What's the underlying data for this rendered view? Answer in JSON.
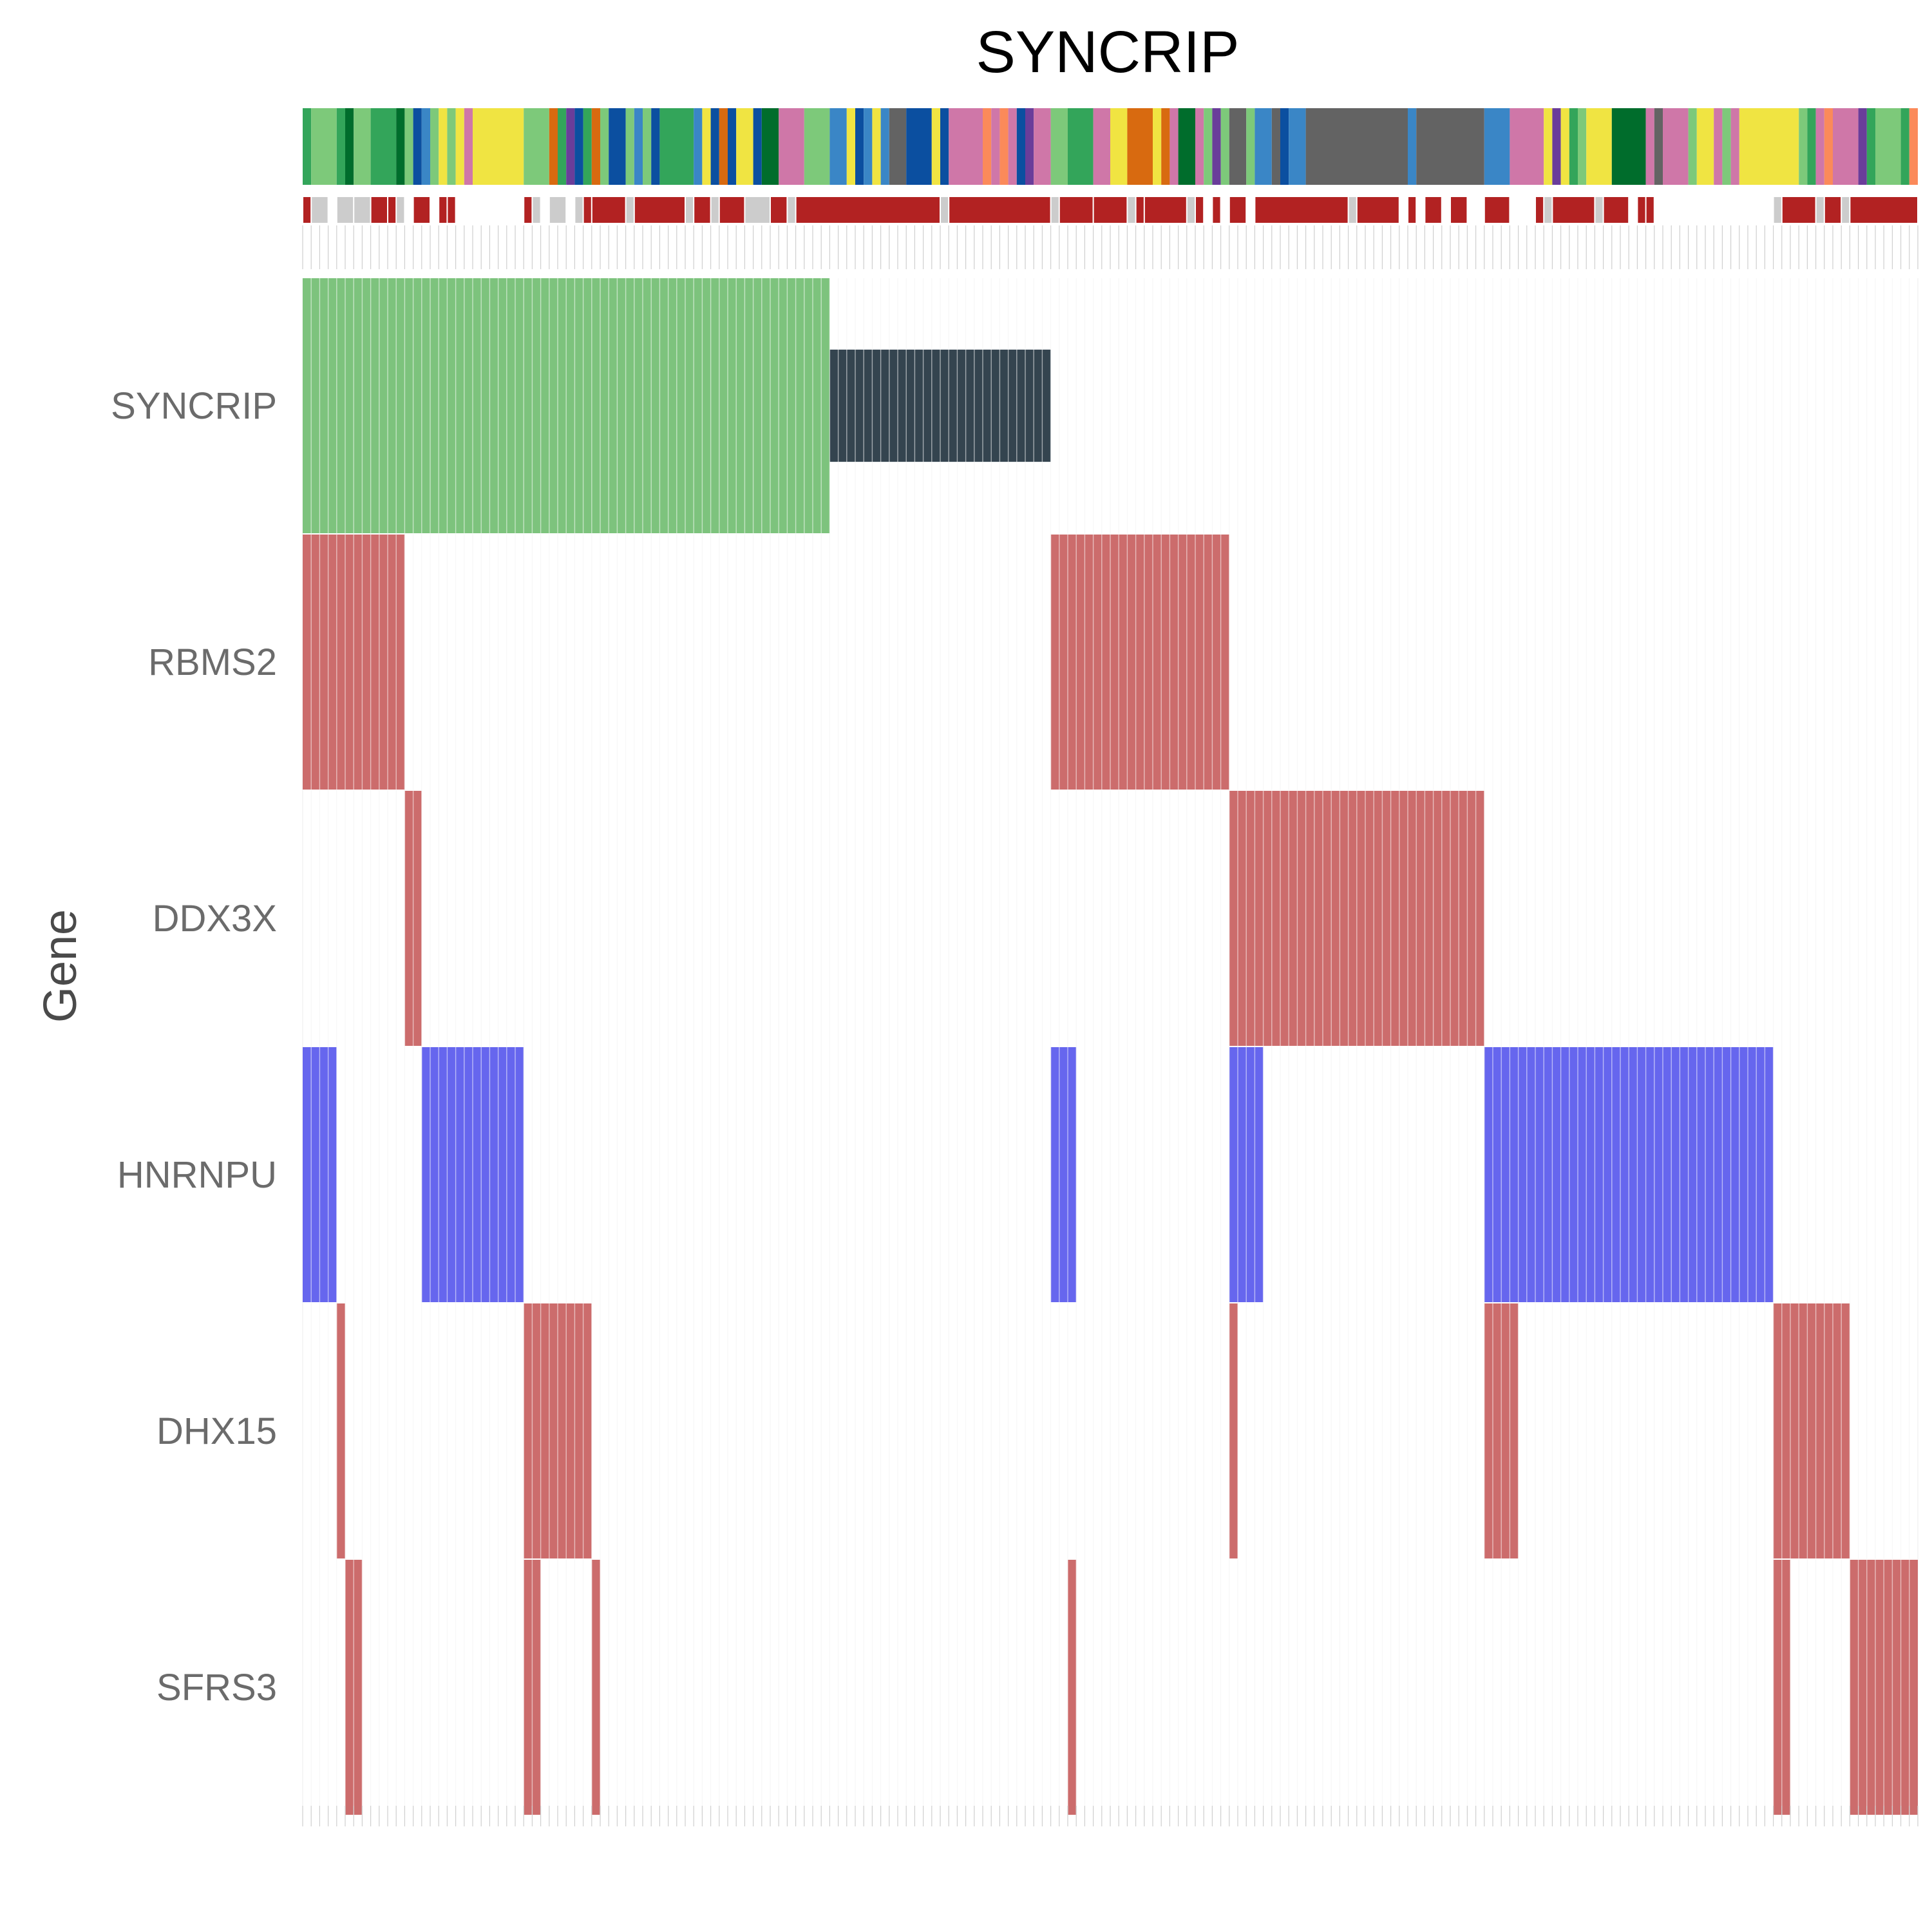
{
  "chart_data": {
    "type": "heatmap",
    "title": "SYNCRIP",
    "xlabel": "",
    "ylabel": "Gene",
    "n_samples": 190,
    "grid": true,
    "genes": [
      "SYNCRIP",
      "RBMS2",
      "DDX3X",
      "HNRNPU",
      "DHX15",
      "SFRS3"
    ],
    "colors": {
      "syncrip_high": "#7dc37d",
      "syncrip_low": "#34444f",
      "alteration_red": "#cc6c6c",
      "alteration_blue": "#6666ee",
      "mutation_track": "#b22222",
      "missing": "#cccccc",
      "grid_line": "#ececec"
    },
    "syncrip_track": {
      "high_samples": [
        0,
        61
      ],
      "low_samples": [
        62,
        87
      ],
      "high_color": "#7dc37d",
      "low_color": "#34444f"
    },
    "alterations": [
      {
        "gene": "RBMS2",
        "color": "#cc6c6c",
        "ranges": [
          [
            0,
            11
          ],
          [
            88,
            108
          ]
        ]
      },
      {
        "gene": "DDX3X",
        "color": "#cc6c6c",
        "ranges": [
          [
            12,
            13
          ],
          [
            109,
            138
          ]
        ]
      },
      {
        "gene": "HNRNPU",
        "color": "#6666ee",
        "ranges": [
          [
            0,
            3
          ],
          [
            14,
            25
          ],
          [
            88,
            90
          ],
          [
            109,
            112
          ],
          [
            139,
            172
          ]
        ]
      },
      {
        "gene": "DHX15",
        "color": "#cc6c6c",
        "ranges": [
          [
            4,
            4
          ],
          [
            26,
            33
          ],
          [
            109,
            109
          ],
          [
            139,
            142
          ],
          [
            173,
            181
          ]
        ]
      },
      {
        "gene": "SFRS3",
        "color": "#cc6c6c",
        "ranges": [
          [
            5,
            6
          ],
          [
            26,
            27
          ],
          [
            34,
            34
          ],
          [
            90,
            90
          ],
          [
            173,
            174
          ],
          [
            182,
            189
          ]
        ]
      }
    ],
    "annotation_track_1": [
      {
        "start": 0,
        "end": 0,
        "color": "#33a55a"
      },
      {
        "start": 1,
        "end": 3,
        "color": "#7dc97a"
      },
      {
        "start": 4,
        "end": 4,
        "color": "#33a55a"
      },
      {
        "start": 5,
        "end": 5,
        "color": "#006d2c"
      },
      {
        "start": 6,
        "end": 7,
        "color": "#7dc97a"
      },
      {
        "start": 8,
        "end": 10,
        "color": "#33a55a"
      },
      {
        "start": 11,
        "end": 11,
        "color": "#006d2c"
      },
      {
        "start": 12,
        "end": 12,
        "color": "#7dc97a"
      },
      {
        "start": 13,
        "end": 13,
        "color": "#0b4fa0"
      },
      {
        "start": 14,
        "end": 14,
        "color": "#3a86c6"
      },
      {
        "start": 15,
        "end": 15,
        "color": "#7dc97a"
      },
      {
        "start": 16,
        "end": 16,
        "color": "#f0e442"
      },
      {
        "start": 17,
        "end": 17,
        "color": "#7dc97a"
      },
      {
        "start": 18,
        "end": 18,
        "color": "#f0e442"
      },
      {
        "start": 19,
        "end": 19,
        "color": "#cf77a8"
      },
      {
        "start": 20,
        "end": 25,
        "color": "#f0e442"
      },
      {
        "start": 26,
        "end": 28,
        "color": "#7dc97a"
      },
      {
        "start": 29,
        "end": 29,
        "color": "#d86a10"
      },
      {
        "start": 30,
        "end": 30,
        "color": "#33a55a"
      },
      {
        "start": 31,
        "end": 31,
        "color": "#6a3d9a"
      },
      {
        "start": 32,
        "end": 32,
        "color": "#0b4fa0"
      },
      {
        "start": 33,
        "end": 33,
        "color": "#33a55a"
      },
      {
        "start": 34,
        "end": 34,
        "color": "#d86a10"
      },
      {
        "start": 35,
        "end": 35,
        "color": "#7dc97a"
      },
      {
        "start": 36,
        "end": 37,
        "color": "#0b4fa0"
      },
      {
        "start": 38,
        "end": 38,
        "color": "#7dc97a"
      },
      {
        "start": 39,
        "end": 39,
        "color": "#3a86c6"
      },
      {
        "start": 40,
        "end": 40,
        "color": "#7dc97a"
      },
      {
        "start": 41,
        "end": 41,
        "color": "#0b4fa0"
      },
      {
        "start": 42,
        "end": 45,
        "color": "#33a55a"
      },
      {
        "start": 46,
        "end": 46,
        "color": "#3a86c6"
      },
      {
        "start": 47,
        "end": 47,
        "color": "#f0e442"
      },
      {
        "start": 48,
        "end": 48,
        "color": "#0b4fa0"
      },
      {
        "start": 49,
        "end": 49,
        "color": "#d86a10"
      },
      {
        "start": 50,
        "end": 50,
        "color": "#0b4fa0"
      },
      {
        "start": 51,
        "end": 52,
        "color": "#f0e442"
      },
      {
        "start": 53,
        "end": 53,
        "color": "#0b4fa0"
      },
      {
        "start": 54,
        "end": 55,
        "color": "#006d2c"
      },
      {
        "start": 56,
        "end": 58,
        "color": "#cf77a8"
      },
      {
        "start": 59,
        "end": 61,
        "color": "#7dc97a"
      },
      {
        "start": 62,
        "end": 63,
        "color": "#3a86c6"
      },
      {
        "start": 64,
        "end": 64,
        "color": "#f0e442"
      },
      {
        "start": 65,
        "end": 65,
        "color": "#0b4fa0"
      },
      {
        "start": 66,
        "end": 66,
        "color": "#3a86c6"
      },
      {
        "start": 67,
        "end": 67,
        "color": "#f0e442"
      },
      {
        "start": 68,
        "end": 68,
        "color": "#3a86c6"
      },
      {
        "start": 69,
        "end": 70,
        "color": "#636363"
      },
      {
        "start": 71,
        "end": 73,
        "color": "#0b4fa0"
      },
      {
        "start": 74,
        "end": 74,
        "color": "#f0e442"
      },
      {
        "start": 75,
        "end": 75,
        "color": "#0b4fa0"
      },
      {
        "start": 76,
        "end": 79,
        "color": "#cf77a8"
      },
      {
        "start": 80,
        "end": 80,
        "color": "#fb8a5a"
      },
      {
        "start": 81,
        "end": 81,
        "color": "#cf77a8"
      },
      {
        "start": 82,
        "end": 82,
        "color": "#fb8a5a"
      },
      {
        "start": 83,
        "end": 83,
        "color": "#cf77a8"
      },
      {
        "start": 84,
        "end": 84,
        "color": "#0b4fa0"
      },
      {
        "start": 85,
        "end": 85,
        "color": "#6a3d9a"
      },
      {
        "start": 86,
        "end": 87,
        "color": "#cf77a8"
      },
      {
        "start": 88,
        "end": 89,
        "color": "#7dc97a"
      },
      {
        "start": 90,
        "end": 92,
        "color": "#33a55a"
      },
      {
        "start": 93,
        "end": 94,
        "color": "#cf77a8"
      },
      {
        "start": 95,
        "end": 96,
        "color": "#f0e442"
      },
      {
        "start": 97,
        "end": 99,
        "color": "#d86a10"
      },
      {
        "start": 100,
        "end": 100,
        "color": "#f0e442"
      },
      {
        "start": 101,
        "end": 101,
        "color": "#d86a10"
      },
      {
        "start": 102,
        "end": 102,
        "color": "#cf77a8"
      },
      {
        "start": 103,
        "end": 104,
        "color": "#006d2c"
      },
      {
        "start": 105,
        "end": 105,
        "color": "#cf77a8"
      },
      {
        "start": 106,
        "end": 106,
        "color": "#7dc97a"
      },
      {
        "start": 107,
        "end": 107,
        "color": "#6a3d9a"
      },
      {
        "start": 108,
        "end": 108,
        "color": "#7dc97a"
      },
      {
        "start": 109,
        "end": 110,
        "color": "#636363"
      },
      {
        "start": 111,
        "end": 111,
        "color": "#7dc97a"
      },
      {
        "start": 112,
        "end": 113,
        "color": "#3a86c6"
      },
      {
        "start": 114,
        "end": 114,
        "color": "#636363"
      },
      {
        "start": 115,
        "end": 115,
        "color": "#0b4fa0"
      },
      {
        "start": 116,
        "end": 117,
        "color": "#3a86c6"
      },
      {
        "start": 118,
        "end": 129,
        "color": "#636363"
      },
      {
        "start": 130,
        "end": 130,
        "color": "#3a86c6"
      },
      {
        "start": 131,
        "end": 138,
        "color": "#636363"
      },
      {
        "start": 139,
        "end": 141,
        "color": "#3a86c6"
      },
      {
        "start": 142,
        "end": 145,
        "color": "#cf77a8"
      },
      {
        "start": 146,
        "end": 146,
        "color": "#f0e442"
      },
      {
        "start": 147,
        "end": 147,
        "color": "#6a3d9a"
      },
      {
        "start": 148,
        "end": 148,
        "color": "#f0e442"
      },
      {
        "start": 149,
        "end": 149,
        "color": "#33a55a"
      },
      {
        "start": 150,
        "end": 150,
        "color": "#7dc97a"
      },
      {
        "start": 151,
        "end": 153,
        "color": "#f0e442"
      },
      {
        "start": 154,
        "end": 157,
        "color": "#006d2c"
      },
      {
        "start": 158,
        "end": 158,
        "color": "#cf77a8"
      },
      {
        "start": 159,
        "end": 159,
        "color": "#636363"
      },
      {
        "start": 160,
        "end": 162,
        "color": "#cf77a8"
      },
      {
        "start": 163,
        "end": 163,
        "color": "#7dc97a"
      },
      {
        "start": 164,
        "end": 165,
        "color": "#f0e442"
      },
      {
        "start": 166,
        "end": 166,
        "color": "#cf77a8"
      },
      {
        "start": 167,
        "end": 167,
        "color": "#7dc97a"
      },
      {
        "start": 168,
        "end": 168,
        "color": "#cf77a8"
      },
      {
        "start": 169,
        "end": 175,
        "color": "#f0e442"
      },
      {
        "start": 176,
        "end": 176,
        "color": "#7dc97a"
      },
      {
        "start": 177,
        "end": 177,
        "color": "#33a55a"
      },
      {
        "start": 178,
        "end": 178,
        "color": "#cf77a8"
      },
      {
        "start": 179,
        "end": 179,
        "color": "#fb8a5a"
      },
      {
        "start": 180,
        "end": 182,
        "color": "#cf77a8"
      },
      {
        "start": 183,
        "end": 183,
        "color": "#6a3d9a"
      },
      {
        "start": 184,
        "end": 184,
        "color": "#33a55a"
      },
      {
        "start": 185,
        "end": 187,
        "color": "#7dc97a"
      },
      {
        "start": 188,
        "end": 188,
        "color": "#33a55a"
      },
      {
        "start": 189,
        "end": 189,
        "color": "#fb8a5a"
      }
    ],
    "annotation_track_2": [
      {
        "start": 0,
        "end": 0,
        "color": "#b22222"
      },
      {
        "start": 1,
        "end": 2,
        "color": "#cccccc"
      },
      {
        "start": 4,
        "end": 5,
        "color": "#cccccc"
      },
      {
        "start": 6,
        "end": 7,
        "color": "#cccccc"
      },
      {
        "start": 8,
        "end": 9,
        "color": "#b22222"
      },
      {
        "start": 10,
        "end": 10,
        "color": "#b22222"
      },
      {
        "start": 11,
        "end": 11,
        "color": "#cccccc"
      },
      {
        "start": 13,
        "end": 14,
        "color": "#b22222"
      },
      {
        "start": 16,
        "end": 16,
        "color": "#b22222"
      },
      {
        "start": 17,
        "end": 17,
        "color": "#b22222"
      },
      {
        "start": 26,
        "end": 26,
        "color": "#b22222"
      },
      {
        "start": 27,
        "end": 27,
        "color": "#cccccc"
      },
      {
        "start": 29,
        "end": 30,
        "color": "#cccccc"
      },
      {
        "start": 32,
        "end": 32,
        "color": "#cccccc"
      },
      {
        "start": 33,
        "end": 33,
        "color": "#b22222"
      },
      {
        "start": 34,
        "end": 37,
        "color": "#b22222"
      },
      {
        "start": 38,
        "end": 38,
        "color": "#cccccc"
      },
      {
        "start": 39,
        "end": 44,
        "color": "#b22222"
      },
      {
        "start": 45,
        "end": 45,
        "color": "#cccccc"
      },
      {
        "start": 46,
        "end": 47,
        "color": "#b22222"
      },
      {
        "start": 48,
        "end": 48,
        "color": "#cccccc"
      },
      {
        "start": 49,
        "end": 51,
        "color": "#b22222"
      },
      {
        "start": 52,
        "end": 54,
        "color": "#cccccc"
      },
      {
        "start": 55,
        "end": 56,
        "color": "#b22222"
      },
      {
        "start": 57,
        "end": 57,
        "color": "#cccccc"
      },
      {
        "start": 58,
        "end": 74,
        "color": "#b22222"
      },
      {
        "start": 75,
        "end": 75,
        "color": "#cccccc"
      },
      {
        "start": 76,
        "end": 87,
        "color": "#b22222"
      },
      {
        "start": 88,
        "end": 88,
        "color": "#cccccc"
      },
      {
        "start": 89,
        "end": 92,
        "color": "#b22222"
      },
      {
        "start": 93,
        "end": 96,
        "color": "#b22222"
      },
      {
        "start": 97,
        "end": 97,
        "color": "#cccccc"
      },
      {
        "start": 98,
        "end": 98,
        "color": "#b22222"
      },
      {
        "start": 99,
        "end": 103,
        "color": "#b22222"
      },
      {
        "start": 104,
        "end": 104,
        "color": "#cccccc"
      },
      {
        "start": 105,
        "end": 105,
        "color": "#b22222"
      },
      {
        "start": 107,
        "end": 107,
        "color": "#b22222"
      },
      {
        "start": 109,
        "end": 110,
        "color": "#b22222"
      },
      {
        "start": 112,
        "end": 122,
        "color": "#b22222"
      },
      {
        "start": 123,
        "end": 123,
        "color": "#cccccc"
      },
      {
        "start": 124,
        "end": 128,
        "color": "#b22222"
      },
      {
        "start": 130,
        "end": 130,
        "color": "#b22222"
      },
      {
        "start": 132,
        "end": 133,
        "color": "#b22222"
      },
      {
        "start": 135,
        "end": 136,
        "color": "#b22222"
      },
      {
        "start": 139,
        "end": 141,
        "color": "#b22222"
      },
      {
        "start": 145,
        "end": 145,
        "color": "#b22222"
      },
      {
        "start": 146,
        "end": 146,
        "color": "#cccccc"
      },
      {
        "start": 147,
        "end": 151,
        "color": "#b22222"
      },
      {
        "start": 152,
        "end": 152,
        "color": "#cccccc"
      },
      {
        "start": 153,
        "end": 155,
        "color": "#b22222"
      },
      {
        "start": 157,
        "end": 157,
        "color": "#b22222"
      },
      {
        "start": 158,
        "end": 158,
        "color": "#b22222"
      },
      {
        "start": 173,
        "end": 173,
        "color": "#cccccc"
      },
      {
        "start": 174,
        "end": 177,
        "color": "#b22222"
      },
      {
        "start": 178,
        "end": 178,
        "color": "#cccccc"
      },
      {
        "start": 179,
        "end": 180,
        "color": "#b22222"
      },
      {
        "start": 181,
        "end": 181,
        "color": "#cccccc"
      },
      {
        "start": 182,
        "end": 189,
        "color": "#b22222"
      }
    ]
  }
}
